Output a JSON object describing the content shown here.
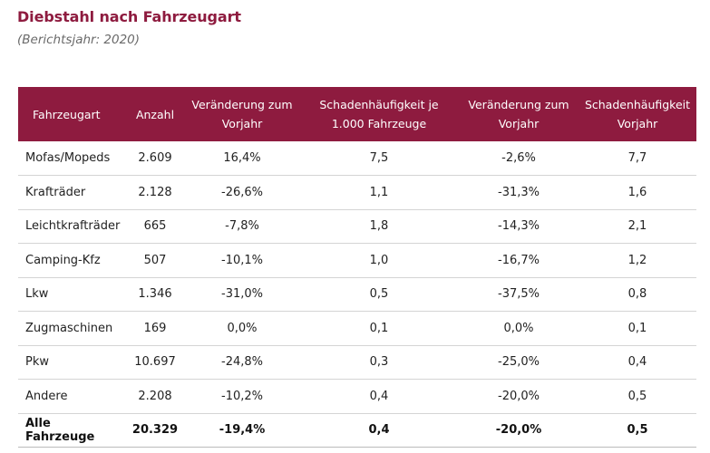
{
  "title": "Diebstahl nach Fahrzeugart",
  "subtitle": "(Berichtsjahr: 2020)",
  "colors": {
    "header_bg": "#8e1b3f",
    "title": "#8e1b3f"
  },
  "table": {
    "headers": [
      "Fahrzeugart",
      "Anzahl",
      "Veränderung zum Vorjahr",
      "Schadenhäufigkeit je 1.000 Fahrzeuge",
      "Veränderung zum Vorjahr",
      "Schadenhäufigkeit Vorjahr"
    ],
    "rows": [
      [
        "Mofas/Mopeds",
        "2.609",
        "16,4%",
        "7,5",
        "-2,6%",
        "7,7"
      ],
      [
        "Krafträder",
        "2.128",
        "-26,6%",
        "1,1",
        "-31,3%",
        "1,6"
      ],
      [
        "Leichtkrafträder",
        "665",
        "-7,8%",
        "1,8",
        "-14,3%",
        "2,1"
      ],
      [
        "Camping-Kfz",
        "507",
        "-10,1%",
        "1,0",
        "-16,7%",
        "1,2"
      ],
      [
        "Lkw",
        "1.346",
        "-31,0%",
        "0,5",
        "-37,5%",
        "0,8"
      ],
      [
        "Zugmaschinen",
        "169",
        "0,0%",
        "0,1",
        "0,0%",
        "0,1"
      ],
      [
        "Pkw",
        "10.697",
        "-24,8%",
        "0,3",
        "-25,0%",
        "0,4"
      ],
      [
        "Andere",
        "2.208",
        "-10,2%",
        "0,4",
        "-20,0%",
        "0,5"
      ]
    ],
    "total": [
      "Alle Fahrzeuge",
      "20.329",
      "-19,4%",
      "0,4",
      "-20,0%",
      "0,5"
    ]
  }
}
